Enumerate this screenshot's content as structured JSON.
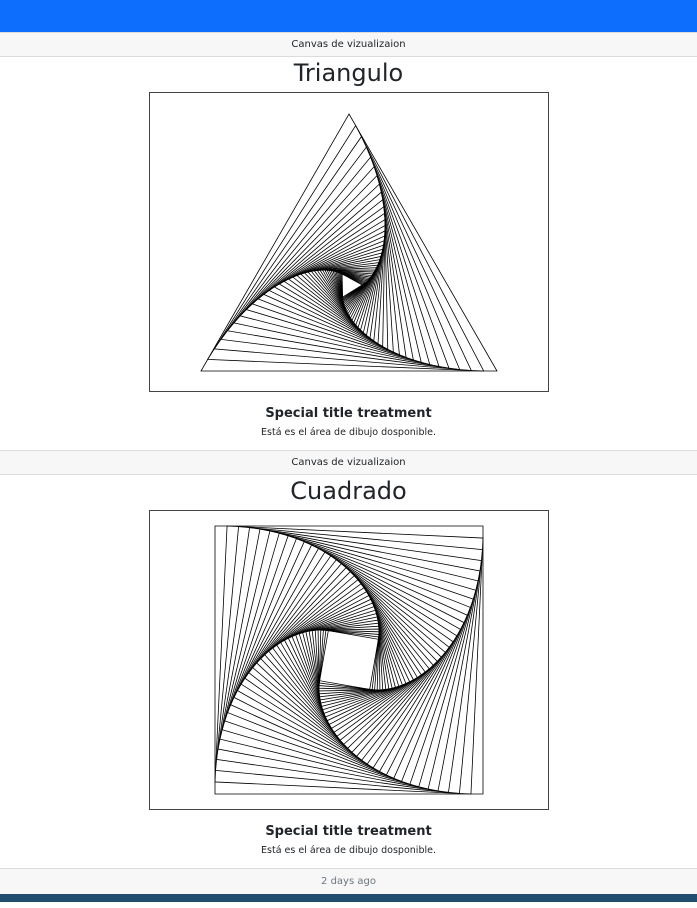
{
  "sections": [
    {
      "header": "Canvas de vizualizaion",
      "title": "Triangulo",
      "subtitle": "Special title treatment",
      "text": "Está es el área de dibujo dosponible."
    },
    {
      "header": "Canvas de vizualizaion",
      "title": "Cuadrado",
      "subtitle": "Special title treatment",
      "text": "Está es el área de dibujo dosponible."
    }
  ],
  "footer": {
    "text": "2 days ago"
  },
  "colors": {
    "navbar": "#0d6efd",
    "bottom_bar": "#1f4e6e",
    "line": "#000000"
  }
}
